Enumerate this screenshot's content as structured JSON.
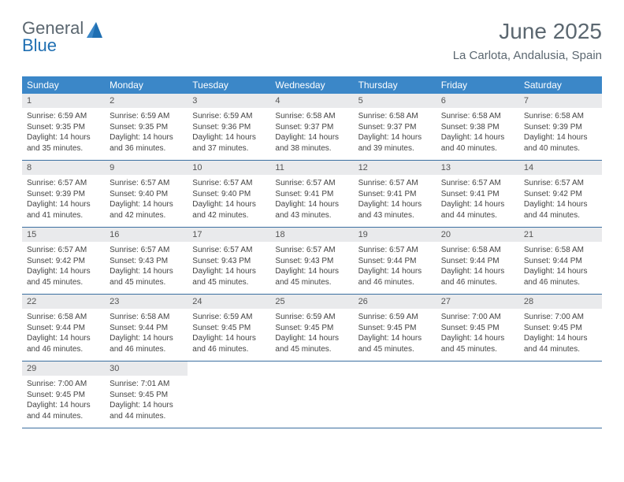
{
  "logo": {
    "text1": "General",
    "text2": "Blue"
  },
  "title": "June 2025",
  "location": "La Carlota, Andalusia, Spain",
  "colors": {
    "header_bg": "#3b87c8",
    "header_text": "#ffffff",
    "daynum_bg": "#e9eaec",
    "border": "#3b6fa0",
    "text": "#444444",
    "title": "#5b6770",
    "logo_accent": "#1f6fb2"
  },
  "weekdays": [
    "Sunday",
    "Monday",
    "Tuesday",
    "Wednesday",
    "Thursday",
    "Friday",
    "Saturday"
  ],
  "weeks": [
    [
      {
        "n": "1",
        "sr": "6:59 AM",
        "ss": "9:35 PM",
        "dl": "14 hours and 35 minutes."
      },
      {
        "n": "2",
        "sr": "6:59 AM",
        "ss": "9:35 PM",
        "dl": "14 hours and 36 minutes."
      },
      {
        "n": "3",
        "sr": "6:59 AM",
        "ss": "9:36 PM",
        "dl": "14 hours and 37 minutes."
      },
      {
        "n": "4",
        "sr": "6:58 AM",
        "ss": "9:37 PM",
        "dl": "14 hours and 38 minutes."
      },
      {
        "n": "5",
        "sr": "6:58 AM",
        "ss": "9:37 PM",
        "dl": "14 hours and 39 minutes."
      },
      {
        "n": "6",
        "sr": "6:58 AM",
        "ss": "9:38 PM",
        "dl": "14 hours and 40 minutes."
      },
      {
        "n": "7",
        "sr": "6:58 AM",
        "ss": "9:39 PM",
        "dl": "14 hours and 40 minutes."
      }
    ],
    [
      {
        "n": "8",
        "sr": "6:57 AM",
        "ss": "9:39 PM",
        "dl": "14 hours and 41 minutes."
      },
      {
        "n": "9",
        "sr": "6:57 AM",
        "ss": "9:40 PM",
        "dl": "14 hours and 42 minutes."
      },
      {
        "n": "10",
        "sr": "6:57 AM",
        "ss": "9:40 PM",
        "dl": "14 hours and 42 minutes."
      },
      {
        "n": "11",
        "sr": "6:57 AM",
        "ss": "9:41 PM",
        "dl": "14 hours and 43 minutes."
      },
      {
        "n": "12",
        "sr": "6:57 AM",
        "ss": "9:41 PM",
        "dl": "14 hours and 43 minutes."
      },
      {
        "n": "13",
        "sr": "6:57 AM",
        "ss": "9:41 PM",
        "dl": "14 hours and 44 minutes."
      },
      {
        "n": "14",
        "sr": "6:57 AM",
        "ss": "9:42 PM",
        "dl": "14 hours and 44 minutes."
      }
    ],
    [
      {
        "n": "15",
        "sr": "6:57 AM",
        "ss": "9:42 PM",
        "dl": "14 hours and 45 minutes."
      },
      {
        "n": "16",
        "sr": "6:57 AM",
        "ss": "9:43 PM",
        "dl": "14 hours and 45 minutes."
      },
      {
        "n": "17",
        "sr": "6:57 AM",
        "ss": "9:43 PM",
        "dl": "14 hours and 45 minutes."
      },
      {
        "n": "18",
        "sr": "6:57 AM",
        "ss": "9:43 PM",
        "dl": "14 hours and 45 minutes."
      },
      {
        "n": "19",
        "sr": "6:57 AM",
        "ss": "9:44 PM",
        "dl": "14 hours and 46 minutes."
      },
      {
        "n": "20",
        "sr": "6:58 AM",
        "ss": "9:44 PM",
        "dl": "14 hours and 46 minutes."
      },
      {
        "n": "21",
        "sr": "6:58 AM",
        "ss": "9:44 PM",
        "dl": "14 hours and 46 minutes."
      }
    ],
    [
      {
        "n": "22",
        "sr": "6:58 AM",
        "ss": "9:44 PM",
        "dl": "14 hours and 46 minutes."
      },
      {
        "n": "23",
        "sr": "6:58 AM",
        "ss": "9:44 PM",
        "dl": "14 hours and 46 minutes."
      },
      {
        "n": "24",
        "sr": "6:59 AM",
        "ss": "9:45 PM",
        "dl": "14 hours and 46 minutes."
      },
      {
        "n": "25",
        "sr": "6:59 AM",
        "ss": "9:45 PM",
        "dl": "14 hours and 45 minutes."
      },
      {
        "n": "26",
        "sr": "6:59 AM",
        "ss": "9:45 PM",
        "dl": "14 hours and 45 minutes."
      },
      {
        "n": "27",
        "sr": "7:00 AM",
        "ss": "9:45 PM",
        "dl": "14 hours and 45 minutes."
      },
      {
        "n": "28",
        "sr": "7:00 AM",
        "ss": "9:45 PM",
        "dl": "14 hours and 44 minutes."
      }
    ],
    [
      {
        "n": "29",
        "sr": "7:00 AM",
        "ss": "9:45 PM",
        "dl": "14 hours and 44 minutes."
      },
      {
        "n": "30",
        "sr": "7:01 AM",
        "ss": "9:45 PM",
        "dl": "14 hours and 44 minutes."
      },
      null,
      null,
      null,
      null,
      null
    ]
  ],
  "labels": {
    "sunrise": "Sunrise:",
    "sunset": "Sunset:",
    "daylight": "Daylight:"
  }
}
